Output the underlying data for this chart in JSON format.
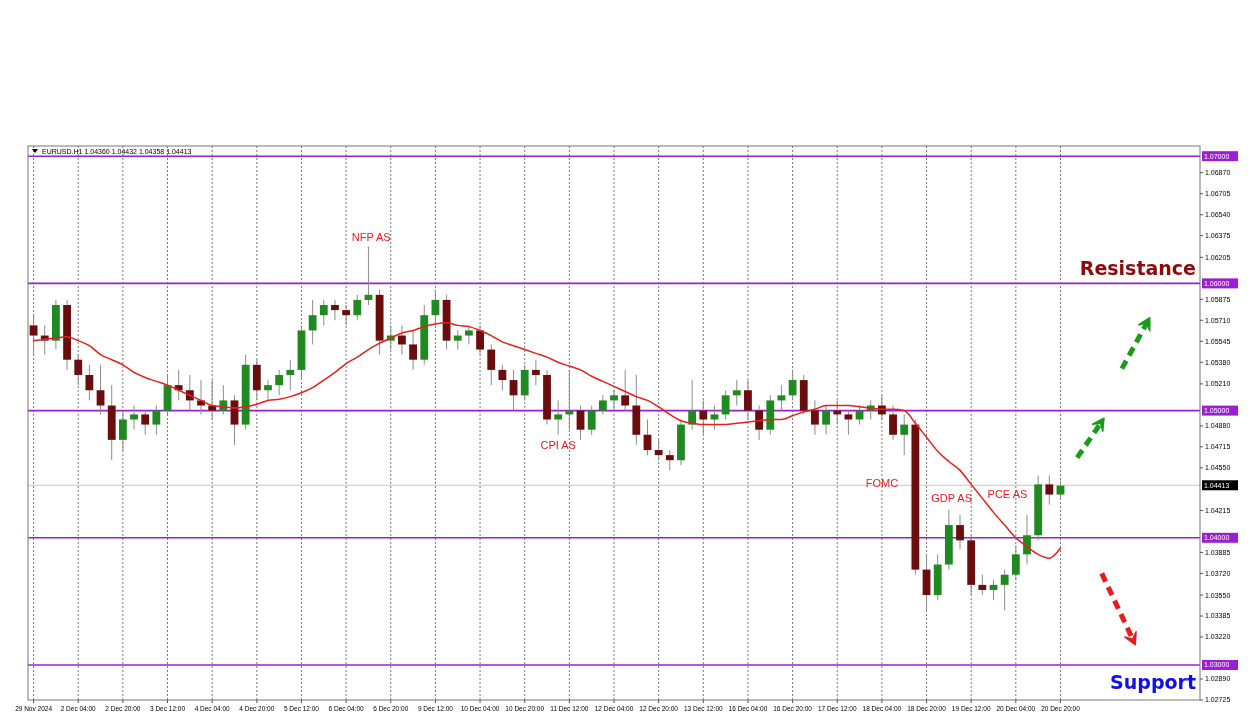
{
  "chart_data": {
    "type": "candlestick",
    "title": "EURUSD.H1  1.04360 1.04432 1.04358 1.04413",
    "categories": [
      "29 Nov 2024",
      null,
      null,
      null,
      "2 Dec 04:00",
      null,
      null,
      null,
      "2 Dec 20:00",
      null,
      null,
      null,
      "3 Dec 12:00",
      null,
      null,
      null,
      "4 Dec 04:00",
      null,
      null,
      null,
      "4 Dec 20:00",
      null,
      null,
      null,
      "5 Dec 12:00",
      null,
      null,
      null,
      "6 Dec 04:00",
      null,
      null,
      null,
      "6 Dec 20:00",
      null,
      null,
      null,
      "9 Dec 12:00",
      null,
      null,
      null,
      "10 Dec 04:00",
      null,
      null,
      null,
      "10 Dec 20:00",
      null,
      null,
      null,
      "11 Dec 12:00",
      null,
      null,
      null,
      "12 Dec 04:00",
      null,
      null,
      null,
      "12 Dec 20:00",
      null,
      null,
      null,
      "13 Dec 12:00",
      null,
      null,
      null,
      "16 Dec 04:00",
      null,
      null,
      null,
      "16 Dec 20:00",
      null,
      null,
      null,
      "17 Dec 12:00",
      null,
      null,
      null,
      "18 Dec 04:00",
      null,
      null,
      null,
      "18 Dec 20:00",
      null,
      null,
      null,
      "19 Dec 12:00",
      null,
      null,
      null,
      "20 Dec 04:00",
      null,
      null,
      null,
      "20 Dec 20:00",
      null,
      null,
      null,
      null,
      null,
      null,
      null,
      null,
      null,
      null,
      null,
      null
    ],
    "ohlc": [
      [
        1.0567,
        1.0575,
        1.0544,
        1.0559
      ],
      [
        1.0559,
        1.0567,
        1.0544,
        1.0555
      ],
      [
        1.0555,
        1.0587,
        1.0548,
        1.0583
      ],
      [
        1.0583,
        1.0587,
        1.0532,
        1.054
      ],
      [
        1.054,
        1.0544,
        1.052,
        1.0528
      ],
      [
        1.0528,
        1.0536,
        1.0508,
        1.0516
      ],
      [
        1.0516,
        1.0536,
        1.0497,
        1.0504
      ],
      [
        1.0504,
        1.052,
        1.0461,
        1.0477
      ],
      [
        1.0477,
        1.05,
        1.0469,
        1.0493
      ],
      [
        1.0493,
        1.0504,
        1.0485,
        1.0497
      ],
      [
        1.0497,
        1.05,
        1.0481,
        1.0489
      ],
      [
        1.0489,
        1.0504,
        1.0481,
        1.05
      ],
      [
        1.05,
        1.0528,
        1.0497,
        1.052
      ],
      [
        1.052,
        1.0532,
        1.0508,
        1.0516
      ],
      [
        1.0516,
        1.0528,
        1.05,
        1.0508
      ],
      [
        1.0508,
        1.0524,
        1.0497,
        1.0504
      ],
      [
        1.0504,
        1.0524,
        1.0493,
        1.05
      ],
      [
        1.05,
        1.052,
        1.0497,
        1.0508
      ],
      [
        1.0508,
        1.0512,
        1.0473,
        1.0489
      ],
      [
        1.0489,
        1.0544,
        1.0485,
        1.0536
      ],
      [
        1.0536,
        1.054,
        1.0508,
        1.0516
      ],
      [
        1.0516,
        1.0524,
        1.0508,
        1.052
      ],
      [
        1.052,
        1.0532,
        1.0512,
        1.0528
      ],
      [
        1.0528,
        1.054,
        1.0516,
        1.0532
      ],
      [
        1.0532,
        1.0567,
        1.0524,
        1.0563
      ],
      [
        1.0563,
        1.0587,
        1.0552,
        1.0575
      ],
      [
        1.0575,
        1.0587,
        1.0567,
        1.0583
      ],
      [
        1.0583,
        1.0587,
        1.0571,
        1.0579
      ],
      [
        1.0579,
        1.0583,
        1.0567,
        1.0575
      ],
      [
        1.0575,
        1.0591,
        1.0571,
        1.0587
      ],
      [
        1.0587,
        1.0629,
        1.0583,
        1.0591
      ],
      [
        1.0591,
        1.0595,
        1.0544,
        1.0555
      ],
      [
        1.0555,
        1.0567,
        1.0548,
        1.0559
      ],
      [
        1.0559,
        1.0567,
        1.0544,
        1.0552
      ],
      [
        1.0552,
        1.0563,
        1.0532,
        1.054
      ],
      [
        1.054,
        1.0583,
        1.0536,
        1.0575
      ],
      [
        1.0575,
        1.0595,
        1.0567,
        1.0587
      ],
      [
        1.0587,
        1.0591,
        1.0548,
        1.0555
      ],
      [
        1.0555,
        1.0563,
        1.0548,
        1.0559
      ],
      [
        1.0559,
        1.0567,
        1.0552,
        1.0563
      ],
      [
        1.0563,
        1.0567,
        1.0544,
        1.0548
      ],
      [
        1.0548,
        1.0552,
        1.052,
        1.0532
      ],
      [
        1.0532,
        1.0536,
        1.0516,
        1.0524
      ],
      [
        1.0524,
        1.0532,
        1.05,
        1.0512
      ],
      [
        1.0512,
        1.0536,
        1.0508,
        1.0532
      ],
      [
        1.0532,
        1.054,
        1.052,
        1.0528
      ],
      [
        1.0528,
        1.0532,
        1.0489,
        1.0493
      ],
      [
        1.0493,
        1.0508,
        1.0481,
        1.0497
      ],
      [
        1.0497,
        1.0532,
        1.0485,
        1.05
      ],
      [
        1.05,
        1.0504,
        1.0477,
        1.0485
      ],
      [
        1.0485,
        1.0504,
        1.0481,
        1.05
      ],
      [
        1.05,
        1.0512,
        1.0497,
        1.0508
      ],
      [
        1.0508,
        1.0516,
        1.05,
        1.0512
      ],
      [
        1.0512,
        1.0532,
        1.05,
        1.0504
      ],
      [
        1.0504,
        1.0528,
        1.0473,
        1.0481
      ],
      [
        1.0481,
        1.0493,
        1.0465,
        1.0469
      ],
      [
        1.0469,
        1.0477,
        1.0461,
        1.0465
      ],
      [
        1.0465,
        1.0469,
        1.0453,
        1.0461
      ],
      [
        1.0461,
        1.0493,
        1.0457,
        1.0489
      ],
      [
        1.0489,
        1.0524,
        1.0485,
        1.05
      ],
      [
        1.05,
        1.0508,
        1.0481,
        1.0493
      ],
      [
        1.0493,
        1.0504,
        1.0485,
        1.0497
      ],
      [
        1.0497,
        1.0516,
        1.0493,
        1.0512
      ],
      [
        1.0512,
        1.0524,
        1.0504,
        1.0516
      ],
      [
        1.0516,
        1.0524,
        1.0493,
        1.05
      ],
      [
        1.05,
        1.0504,
        1.0477,
        1.0485
      ],
      [
        1.0485,
        1.0512,
        1.0481,
        1.0508
      ],
      [
        1.0508,
        1.052,
        1.05,
        1.0512
      ],
      [
        1.0512,
        1.0532,
        1.0508,
        1.0524
      ],
      [
        1.0524,
        1.0528,
        1.0497,
        1.05
      ],
      [
        1.05,
        1.0508,
        1.0481,
        1.0489
      ],
      [
        1.0489,
        1.0504,
        1.0481,
        1.05
      ],
      [
        1.05,
        1.0508,
        1.0489,
        1.0497
      ],
      [
        1.0497,
        1.05,
        1.0481,
        1.0493
      ],
      [
        1.0493,
        1.0504,
        1.0489,
        1.05
      ],
      [
        1.05,
        1.0508,
        1.0493,
        1.0504
      ],
      [
        1.0504,
        1.0512,
        1.0493,
        1.0497
      ],
      [
        1.0497,
        1.0504,
        1.0477,
        1.0481
      ],
      [
        1.0481,
        1.0497,
        1.0465,
        1.0489
      ],
      [
        1.0489,
        1.0493,
        1.0371,
        1.0375
      ],
      [
        1.0375,
        1.0387,
        1.0343,
        1.0355
      ],
      [
        1.0355,
        1.0387,
        1.0351,
        1.0379
      ],
      [
        1.0379,
        1.0422,
        1.0375,
        1.041
      ],
      [
        1.041,
        1.0418,
        1.0391,
        1.0398
      ],
      [
        1.0398,
        1.0402,
        1.0355,
        1.0363
      ],
      [
        1.0363,
        1.0371,
        1.0355,
        1.0359
      ],
      [
        1.0359,
        1.0367,
        1.0351,
        1.0363
      ],
      [
        1.0363,
        1.0375,
        1.0343,
        1.0371
      ],
      [
        1.0371,
        1.0394,
        1.0367,
        1.0387
      ],
      [
        1.0387,
        1.0418,
        1.0379,
        1.0402
      ],
      [
        1.0402,
        1.0449,
        1.0398,
        1.0442
      ],
      [
        1.0442,
        1.0449,
        1.0426,
        1.0434
      ],
      [
        1.0434,
        1.0445,
        1.043,
        1.0441
      ],
      null,
      null,
      null,
      null,
      null,
      null,
      null,
      null,
      null,
      null,
      null,
      null
    ],
    "series": [
      {
        "type": "line",
        "color": "#e8201c",
        "values": [
          1.0555,
          1.0556,
          1.0557,
          1.0558,
          1.0555,
          1.0551,
          1.0544,
          1.054,
          1.0536,
          1.053,
          1.0526,
          1.0523,
          1.052,
          1.0516,
          1.0512,
          1.0508,
          1.0504,
          1.0503,
          1.0502,
          1.0503,
          1.0505,
          1.0508,
          1.0509,
          1.0511,
          1.0514,
          1.0518,
          1.0524,
          1.053,
          1.0537,
          1.0542,
          1.0548,
          1.0553,
          1.0557,
          1.0561,
          1.0563,
          1.0566,
          1.0568,
          1.0569,
          1.0567,
          1.0566,
          1.0563,
          1.0559,
          1.0554,
          1.0551,
          1.0548,
          1.0545,
          1.0542,
          1.0538,
          1.0535,
          1.0532,
          1.0527,
          1.0523,
          1.0519,
          1.0515,
          1.0511,
          1.0508,
          1.0503,
          1.0497,
          1.0492,
          1.049,
          1.0489,
          1.0489,
          1.0489,
          1.049,
          1.0491,
          1.0492,
          1.0493,
          1.0493,
          1.0496,
          1.0499,
          1.0501,
          1.0504,
          1.0504,
          1.0504,
          1.0503,
          1.0502,
          1.0501,
          1.0501,
          1.05,
          1.049,
          1.0479,
          1.0468,
          1.046,
          1.0453,
          1.0442,
          1.0431,
          1.042,
          1.041,
          1.04,
          1.0393,
          1.0387,
          1.0384,
          1.0392,
          null,
          null,
          null,
          null,
          null,
          null,
          null,
          null,
          null,
          null,
          null,
          null
        ]
      }
    ],
    "ylim": [
      1.02725,
      1.0708
    ],
    "yticks": [
      {
        "value": 1.0687,
        "label": "1.06870"
      },
      {
        "value": 1.06705,
        "label": "1.06705"
      },
      {
        "value": 1.0654,
        "label": "1.06540"
      },
      {
        "value": 1.06375,
        "label": "1.06375"
      },
      {
        "value": 1.06205,
        "label": "1.06205"
      },
      {
        "value": 1.05875,
        "label": "1.05875"
      },
      {
        "value": 1.0571,
        "label": "1.05710"
      },
      {
        "value": 1.05545,
        "label": "1.05545"
      },
      {
        "value": 1.0538,
        "label": "1.05380"
      },
      {
        "value": 1.0521,
        "label": "1.05210"
      },
      {
        "value": 1.0488,
        "label": "1.04880"
      },
      {
        "value": 1.04715,
        "label": "1.04715"
      },
      {
        "value": 1.0455,
        "label": "1.04550"
      },
      {
        "value": 1.04215,
        "label": "1.04215"
      },
      {
        "value": 1.03885,
        "label": "1.03885"
      },
      {
        "value": 1.0372,
        "label": "1.03720"
      },
      {
        "value": 1.0355,
        "label": "1.03550"
      },
      {
        "value": 1.03385,
        "label": "1.03385"
      },
      {
        "value": 1.0322,
        "label": "1.03220"
      },
      {
        "value": 1.0289,
        "label": "1.02890"
      },
      {
        "value": 1.02725,
        "label": "1.02725"
      }
    ],
    "ref_lines": [
      {
        "axis": "y",
        "value": 1.07,
        "label": "1.07000",
        "color": "#9b1fd1"
      },
      {
        "axis": "y",
        "value": 1.06,
        "label": "1.06000",
        "color": "#9b1fd1"
      },
      {
        "axis": "y",
        "value": 1.05,
        "label": "1.05000",
        "color": "#9b1fd1"
      },
      {
        "axis": "y",
        "value": 1.04,
        "label": "1.04000",
        "color": "#9b1fd1"
      },
      {
        "axis": "y",
        "value": 1.03,
        "label": "1.03000",
        "color": "#9b1fd1"
      },
      {
        "axis": "y",
        "value": 1.04413,
        "label": "1.04413",
        "color": "#c8c8c8"
      }
    ],
    "annotations": [
      "NFP AS",
      "CPI AS",
      "FOMC",
      "GDP AS",
      "PCE AS",
      "Resistance",
      "Support"
    ],
    "grid": "x"
  }
}
